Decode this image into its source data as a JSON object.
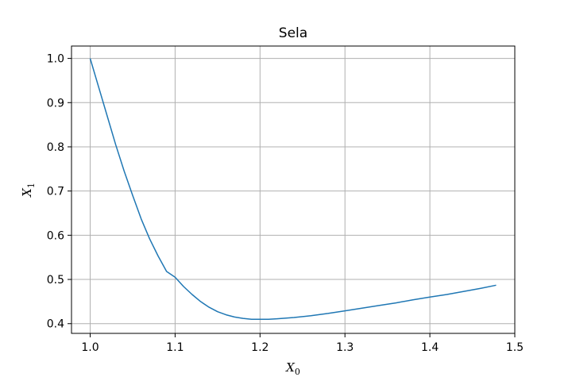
{
  "chart_data": {
    "type": "line",
    "title": "Sela",
    "xlabel": {
      "base": "X",
      "sub": "0"
    },
    "ylabel": {
      "base": "X",
      "sub": "1"
    },
    "xlim": [
      0.978,
      1.5
    ],
    "ylim": [
      0.378,
      1.028
    ],
    "xticks": [
      1.0,
      1.1,
      1.2,
      1.3,
      1.4,
      1.5
    ],
    "xtick_labels": [
      "1.0",
      "1.1",
      "1.2",
      "1.3",
      "1.4",
      "1.5"
    ],
    "yticks": [
      0.4,
      0.5,
      0.6,
      0.7,
      0.8,
      0.9,
      1.0
    ],
    "ytick_labels": [
      "0.4",
      "0.5",
      "0.6",
      "0.7",
      "0.8",
      "0.9",
      "1.0"
    ],
    "grid": true,
    "series": [
      {
        "color": "#1f77b4",
        "x": [
          1.0,
          1.01,
          1.02,
          1.03,
          1.04,
          1.05,
          1.06,
          1.07,
          1.08,
          1.09,
          1.1,
          1.11,
          1.12,
          1.13,
          1.14,
          1.15,
          1.16,
          1.17,
          1.18,
          1.19,
          1.2,
          1.21,
          1.22,
          1.24,
          1.26,
          1.28,
          1.3,
          1.32,
          1.34,
          1.36,
          1.38,
          1.4,
          1.42,
          1.44,
          1.46,
          1.478
        ],
        "y": [
          1.0,
          0.935,
          0.87,
          0.805,
          0.745,
          0.69,
          0.637,
          0.592,
          0.553,
          0.518,
          0.505,
          0.484,
          0.466,
          0.45,
          0.437,
          0.427,
          0.42,
          0.415,
          0.412,
          0.41,
          0.41,
          0.41,
          0.411,
          0.414,
          0.418,
          0.423,
          0.429,
          0.435,
          0.441,
          0.447,
          0.454,
          0.46,
          0.466,
          0.473,
          0.48,
          0.487
        ]
      }
    ]
  }
}
